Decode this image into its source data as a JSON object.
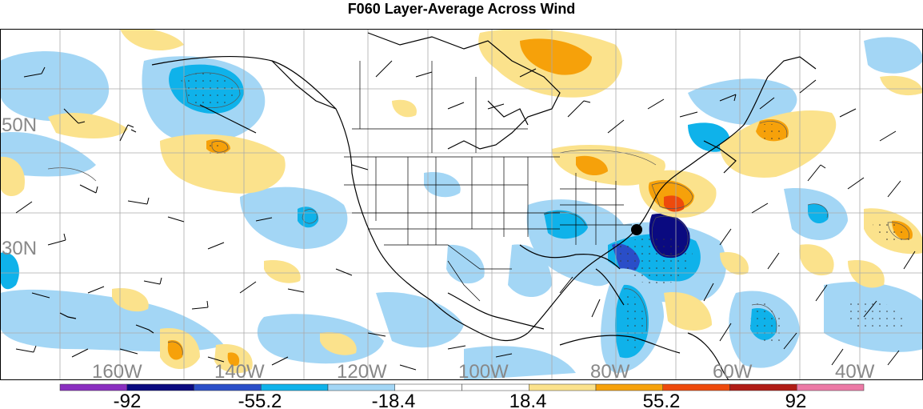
{
  "title": "F060 Layer-Average Across Wind",
  "map": {
    "lat_labels": [
      "50N",
      "30N"
    ],
    "lon_labels": [
      "160W",
      "140W",
      "120W",
      "100W",
      "80W",
      "60W",
      "40W"
    ],
    "marker": "black-dot"
  },
  "colorbar": {
    "labels": [
      "-92",
      "-55.2",
      "-18.4",
      "18.4",
      "55.2",
      "92"
    ],
    "colors": [
      "#8a2fc0",
      "#0a0a80",
      "#2a4ec8",
      "#0fb2ea",
      "#a3d6f5",
      "#ffffff",
      "#ffffff",
      "#fbe28c",
      "#f6a10a",
      "#ee4a0c",
      "#b01c16",
      "#ec7aa6"
    ]
  }
}
